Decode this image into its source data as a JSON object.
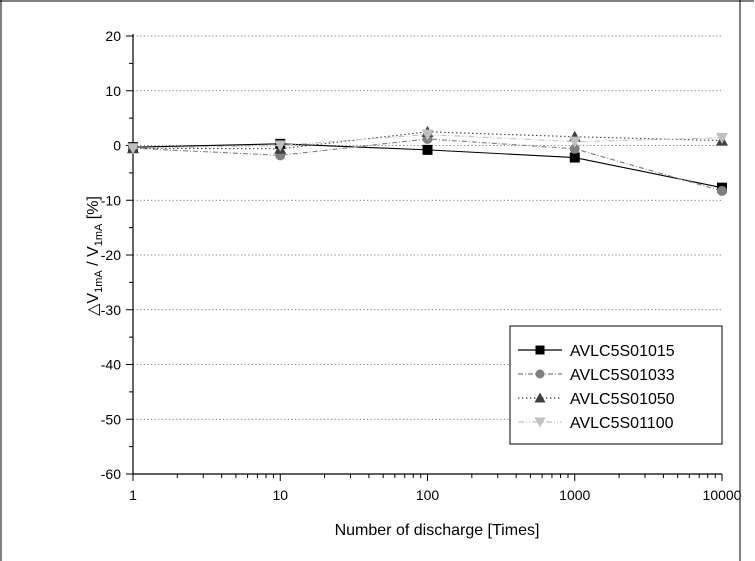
{
  "chart_data": {
    "type": "line",
    "title": "",
    "xlabel": "Number of discharge [Times]",
    "ylabel": {
      "prefix": "△V",
      "sub1": "1mA",
      "mid": " / V",
      "sub2": "1mA",
      "suffix": " [%]"
    },
    "x_scale": "log",
    "x": [
      1,
      10,
      100,
      1000,
      10000
    ],
    "x_tick_labels": [
      "1",
      "10",
      "100",
      "1000",
      "10000"
    ],
    "ylim": [
      -60,
      20
    ],
    "y_ticks": [
      20,
      10,
      0,
      -10,
      -20,
      -30,
      -40,
      -50,
      -60
    ],
    "y_tick_labels": [
      "20",
      "10",
      "0",
      "-10",
      "-20",
      "-30",
      "-40",
      "-50",
      "-60"
    ],
    "grid": "horizontal dotted",
    "legend_position": "bottom-right",
    "series": [
      {
        "name": "AVLC5S01015",
        "values": [
          -0.3,
          0.3,
          -0.8,
          -2.2,
          -7.7
        ],
        "color": "#000000",
        "marker": "square",
        "line": "solid"
      },
      {
        "name": "AVLC5S01033",
        "values": [
          -0.5,
          -1.8,
          1.2,
          -0.6,
          -8.3
        ],
        "color": "#808080",
        "marker": "circle",
        "line": "dash-dot"
      },
      {
        "name": "AVLC5S01050",
        "values": [
          -0.5,
          -0.6,
          2.5,
          1.6,
          0.9
        ],
        "color": "#404040",
        "marker": "triangle-up",
        "line": "dotted"
      },
      {
        "name": "AVLC5S01100",
        "values": [
          -0.5,
          0.0,
          2.0,
          0.7,
          1.4
        ],
        "color": "#c0c0c0",
        "marker": "triangle-down",
        "line": "dash-dot-dot"
      }
    ]
  }
}
